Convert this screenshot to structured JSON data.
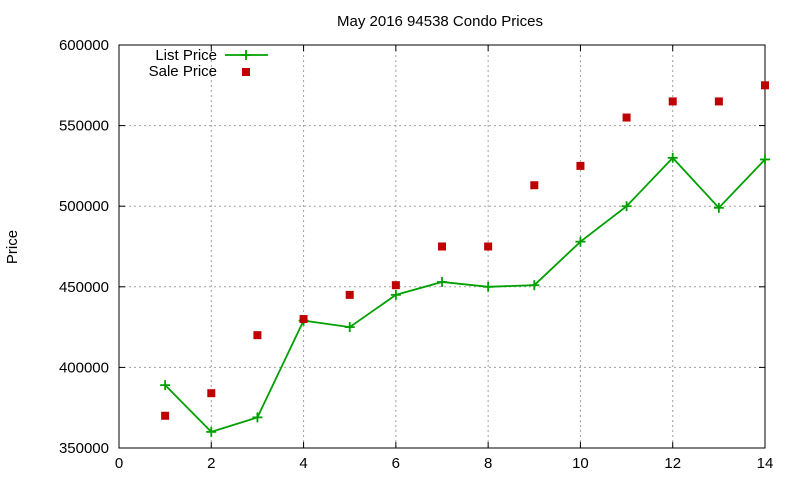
{
  "chart_data": {
    "type": "line",
    "title": "May 2016 94538 Condo Prices",
    "xlabel": "",
    "ylabel": "Price",
    "xlim": [
      0,
      14
    ],
    "ylim": [
      350000,
      600000
    ],
    "x_ticks": [
      0,
      2,
      4,
      6,
      8,
      10,
      12,
      14
    ],
    "y_ticks": [
      350000,
      400000,
      450000,
      500000,
      550000,
      600000
    ],
    "grid": true,
    "legend_position": "top-left",
    "x": [
      1,
      2,
      3,
      4,
      5,
      6,
      7,
      8,
      9,
      10,
      11,
      12,
      13,
      14
    ],
    "series": [
      {
        "name": "List Price",
        "style": "line-with-plus-markers",
        "color": "#00a000",
        "values": [
          389000,
          360000,
          369000,
          429000,
          425000,
          445000,
          453000,
          450000,
          451000,
          478000,
          500000,
          530000,
          499000,
          529000
        ]
      },
      {
        "name": "Sale Price",
        "style": "square-markers",
        "color": "#c00000",
        "values": [
          370000,
          384000,
          420000,
          430000,
          445000,
          451000,
          475000,
          475000,
          513000,
          525000,
          555000,
          565000,
          565000,
          575000
        ]
      }
    ]
  }
}
